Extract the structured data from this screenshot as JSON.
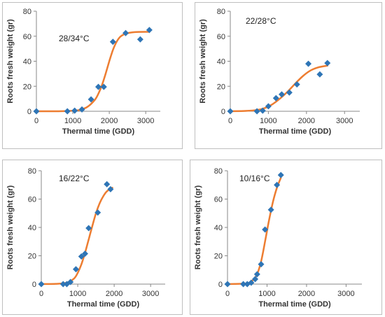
{
  "colors": {
    "curve": "#ED7D31",
    "marker": "#2E75B6",
    "axis": "#888888"
  },
  "chart_data": [
    {
      "type": "scatter",
      "title": "28/34°C",
      "xlabel": "Thermal time (GDD)",
      "ylabel": "Roots fresh weight  (gr)",
      "xlim": [
        0,
        3400
      ],
      "ylim": [
        0,
        80
      ],
      "xticks": [
        0,
        1000,
        2000,
        3000
      ],
      "yticks": [
        0,
        20,
        40,
        60,
        80
      ],
      "points": [
        [
          0,
          0
        ],
        [
          850,
          0
        ],
        [
          1050,
          0.5
        ],
        [
          1250,
          1.5
        ],
        [
          1500,
          9.5
        ],
        [
          1700,
          19.5
        ],
        [
          1850,
          19.5
        ],
        [
          2100,
          55.5
        ],
        [
          2450,
          62.5
        ],
        [
          2850,
          57.5
        ],
        [
          3100,
          65
        ]
      ],
      "curve": [
        [
          0,
          0
        ],
        [
          600,
          0
        ],
        [
          1000,
          0.4
        ],
        [
          1200,
          1.2
        ],
        [
          1400,
          3.5
        ],
        [
          1600,
          9
        ],
        [
          1700,
          14
        ],
        [
          1800,
          21
        ],
        [
          1900,
          30
        ],
        [
          2000,
          40
        ],
        [
          2100,
          49
        ],
        [
          2200,
          55.5
        ],
        [
          2300,
          59.5
        ],
        [
          2450,
          62
        ],
        [
          2700,
          63.3
        ],
        [
          3100,
          63.5
        ]
      ]
    },
    {
      "type": "scatter",
      "title": "22/28°C",
      "xlabel": "Thermal time (GDD)",
      "ylabel": "Roots fresh weight  (gr)",
      "xlim": [
        0,
        3400
      ],
      "ylim": [
        0,
        80
      ],
      "xticks": [
        0,
        1000,
        2000,
        3000
      ],
      "yticks": [
        0,
        20,
        40,
        60,
        80
      ],
      "points": [
        [
          0,
          0
        ],
        [
          700,
          0
        ],
        [
          850,
          0.5
        ],
        [
          1000,
          4
        ],
        [
          1200,
          10.5
        ],
        [
          1350,
          13.5
        ],
        [
          1550,
          15
        ],
        [
          1750,
          21.5
        ],
        [
          2050,
          38
        ],
        [
          2350,
          29.5
        ],
        [
          2550,
          38.5
        ]
      ],
      "curve": [
        [
          0,
          0
        ],
        [
          400,
          0.3
        ],
        [
          700,
          1
        ],
        [
          900,
          2.5
        ],
        [
          1100,
          5.5
        ],
        [
          1300,
          10
        ],
        [
          1500,
          15.5
        ],
        [
          1700,
          22
        ],
        [
          1900,
          28
        ],
        [
          2100,
          32.5
        ],
        [
          2300,
          35
        ],
        [
          2550,
          36.5
        ]
      ]
    },
    {
      "type": "scatter",
      "title": "16/22°C",
      "xlabel": "Thermal time (GDD)",
      "ylabel": "Roots fresh weight  (gr)",
      "xlim": [
        0,
        3400
      ],
      "ylim": [
        0,
        80
      ],
      "xticks": [
        0,
        1000,
        2000,
        3000
      ],
      "yticks": [
        0,
        20,
        40,
        60,
        80
      ],
      "points": [
        [
          0,
          0
        ],
        [
          600,
          0
        ],
        [
          700,
          0
        ],
        [
          800,
          1.5
        ],
        [
          950,
          10.5
        ],
        [
          1100,
          19.5
        ],
        [
          1200,
          21.5
        ],
        [
          1300,
          39.5
        ],
        [
          1550,
          50.5
        ],
        [
          1800,
          70.5
        ],
        [
          1900,
          67
        ]
      ],
      "curve": [
        [
          0,
          0
        ],
        [
          400,
          0.2
        ],
        [
          700,
          1
        ],
        [
          900,
          4
        ],
        [
          1000,
          8
        ],
        [
          1100,
          14
        ],
        [
          1200,
          22
        ],
        [
          1300,
          31.5
        ],
        [
          1400,
          41
        ],
        [
          1500,
          50
        ],
        [
          1600,
          57
        ],
        [
          1700,
          62
        ],
        [
          1800,
          65.5
        ],
        [
          1950,
          68
        ]
      ]
    },
    {
      "type": "scatter",
      "title": "10/16°C",
      "xlabel": "Thermal time (GDD)",
      "ylabel": "Roots fresh weight  (gr)",
      "xlim": [
        0,
        3400
      ],
      "ylim": [
        0,
        80
      ],
      "xticks": [
        0,
        1000,
        2000,
        3000
      ],
      "yticks": [
        0,
        20,
        40,
        60,
        80
      ],
      "points": [
        [
          0,
          0
        ],
        [
          400,
          0
        ],
        [
          500,
          0
        ],
        [
          600,
          1
        ],
        [
          700,
          3.5
        ],
        [
          750,
          7
        ],
        [
          850,
          14
        ],
        [
          950,
          38.5
        ],
        [
          1100,
          52.5
        ],
        [
          1250,
          70
        ],
        [
          1350,
          77
        ]
      ],
      "curve": [
        [
          0,
          0
        ],
        [
          400,
          0.3
        ],
        [
          550,
          1
        ],
        [
          650,
          3
        ],
        [
          750,
          7
        ],
        [
          850,
          16
        ],
        [
          950,
          30
        ],
        [
          1050,
          45
        ],
        [
          1150,
          58
        ],
        [
          1250,
          68
        ],
        [
          1350,
          75
        ]
      ]
    }
  ]
}
